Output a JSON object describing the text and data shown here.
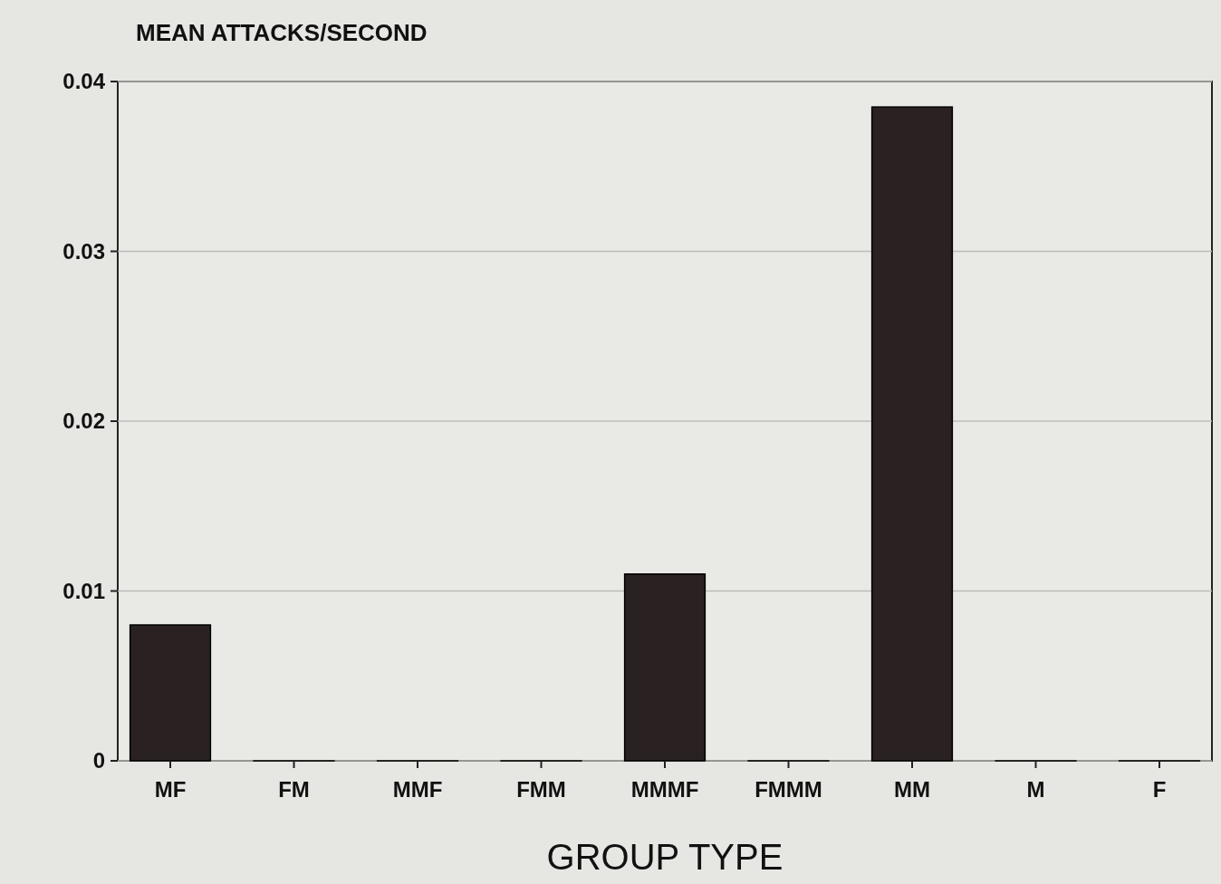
{
  "chart_data": {
    "type": "bar",
    "ylabel": "MEAN ATTACKS/SECOND",
    "xlabel": "GROUP TYPE",
    "categories": [
      "MF",
      "FM",
      "MMF",
      "FMM",
      "MMMF",
      "FMMM",
      "MM",
      "M",
      "F"
    ],
    "values": [
      0.008,
      0,
      0,
      0,
      0.011,
      0,
      0.0385,
      0,
      0
    ],
    "color": "#2a2222",
    "ylim": [
      0,
      0.04
    ],
    "yticks": [
      0,
      0.01,
      0.02,
      0.03,
      0.04
    ],
    "grid": "y"
  }
}
